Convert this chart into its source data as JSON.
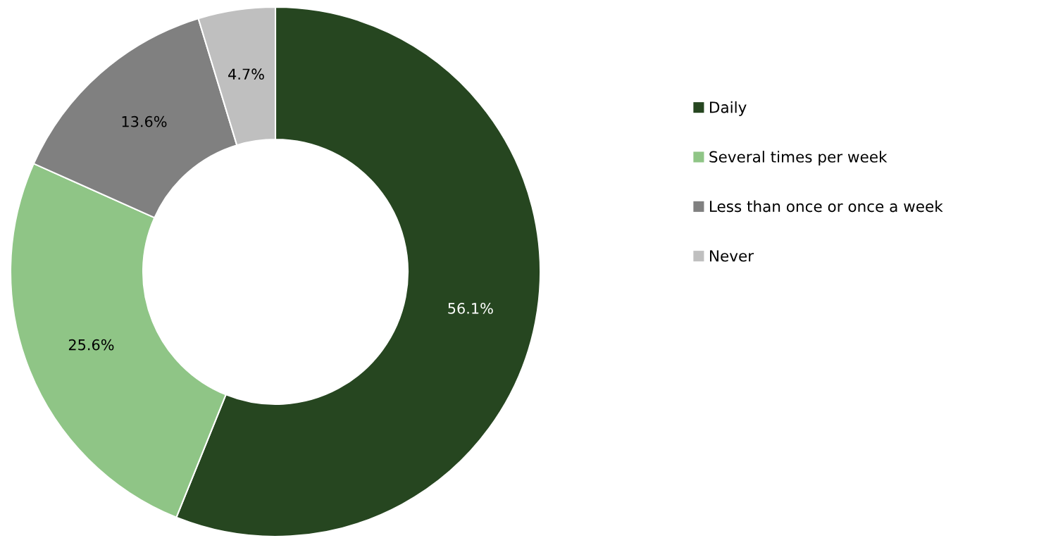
{
  "chart_data": {
    "type": "donut",
    "categories": [
      "Daily",
      "Several times per week",
      "Less than once or once a week",
      "Never"
    ],
    "values": [
      56.1,
      25.6,
      13.6,
      4.7
    ],
    "colors": [
      "#264620",
      "#8fc586",
      "#808080",
      "#bfbfbf"
    ],
    "value_labels": [
      "56.1%",
      "25.6%",
      "13.6%",
      "4.7%"
    ],
    "legend": "right"
  }
}
